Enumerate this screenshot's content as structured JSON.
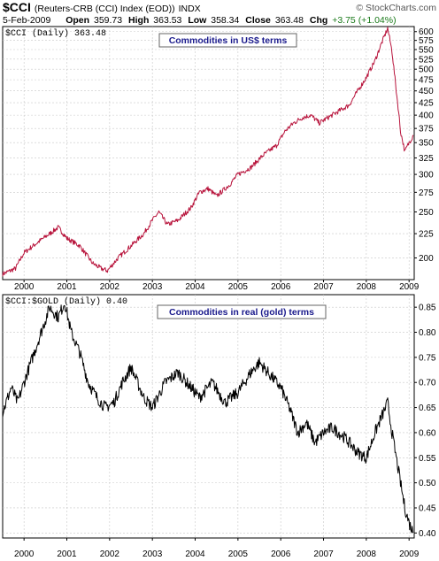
{
  "header": {
    "symbol": "$CCI",
    "description": "(Reuters-CRB (CCI) Index (EOD))",
    "exchange": "INDX",
    "copyright": "© StockCharts.com",
    "date": "5-Feb-2009",
    "open_label": "Open",
    "open_value": "359.73",
    "high_label": "High",
    "high_value": "363.53",
    "low_label": "Low",
    "low_value": "358.34",
    "close_label": "Close",
    "close_value": "363.48",
    "chg_label": "Chg",
    "chg_value": "+3.75 (+1.04%)"
  },
  "colors": {
    "price_line": "#b8143c",
    "ratio_line": "#000000",
    "annotation_text": "#1a1a8c",
    "grid": "#c8c8c8",
    "change_positive": "#1a7a1a"
  },
  "chart_data": [
    {
      "type": "line",
      "panel_label": "$CCI (Daily) 363.48",
      "annotation": "Commodities in US$ terms",
      "y_axis_side": "right",
      "y_scale": "log",
      "ylim": [
        180,
        615
      ],
      "yticks": [
        200,
        225,
        250,
        275,
        300,
        325,
        350,
        375,
        400,
        425,
        450,
        475,
        500,
        525,
        550,
        575,
        600
      ],
      "xlim": [
        1999.5,
        2009.12
      ],
      "xticks": [
        "2000",
        "2001",
        "2002",
        "2003",
        "2004",
        "2005",
        "2006",
        "2007",
        "2008",
        "2009"
      ],
      "grid": true,
      "series": [
        {
          "x": [
            1999.5,
            1999.8,
            2000.0,
            2000.3,
            2000.6,
            2000.8,
            2001.0,
            2001.3,
            2001.6,
            2001.8,
            2001.95,
            2002.2,
            2002.5,
            2002.8,
            2003.0,
            2003.15,
            2003.35,
            2003.6,
            2003.9,
            2004.1,
            2004.3,
            2004.5,
            2004.8,
            2005.0,
            2005.3,
            2005.6,
            2005.9,
            2006.1,
            2006.3,
            2006.5,
            2006.7,
            2006.9,
            2007.1,
            2007.4,
            2007.6,
            2007.8,
            2008.0,
            2008.2,
            2008.4,
            2008.5,
            2008.6,
            2008.7,
            2008.8,
            2008.9,
            2009.0,
            2009.1
          ],
          "values": [
            185,
            190,
            205,
            215,
            225,
            232,
            220,
            212,
            195,
            190,
            188,
            200,
            212,
            225,
            240,
            250,
            235,
            240,
            255,
            275,
            280,
            270,
            285,
            300,
            310,
            330,
            345,
            370,
            385,
            395,
            400,
            385,
            395,
            410,
            420,
            450,
            480,
            520,
            580,
            610,
            545,
            450,
            370,
            335,
            350,
            363
          ]
        }
      ]
    },
    {
      "type": "line",
      "panel_label": "$CCI:$GOLD (Daily) 0.40",
      "annotation": "Commodities in real (gold) terms",
      "y_axis_side": "right",
      "ylim": [
        0.39,
        0.875
      ],
      "yticks": [
        0.4,
        0.45,
        0.5,
        0.55,
        0.6,
        0.65,
        0.7,
        0.75,
        0.8,
        0.85
      ],
      "xlim": [
        1999.5,
        2009.12
      ],
      "xticks": [
        "2000",
        "2001",
        "2002",
        "2003",
        "2004",
        "2005",
        "2006",
        "2007",
        "2008",
        "2009"
      ],
      "grid": true,
      "series": [
        {
          "x": [
            1999.5,
            1999.7,
            1999.85,
            2000.0,
            2000.2,
            2000.4,
            2000.6,
            2000.8,
            2000.95,
            2001.1,
            2001.3,
            2001.5,
            2001.7,
            2001.9,
            2002.1,
            2002.3,
            2002.5,
            2002.8,
            2003.0,
            2003.3,
            2003.6,
            2003.9,
            2004.1,
            2004.4,
            2004.7,
            2005.0,
            2005.3,
            2005.5,
            2005.7,
            2006.0,
            2006.2,
            2006.4,
            2006.6,
            2006.8,
            2007.0,
            2007.2,
            2007.5,
            2007.8,
            2008.0,
            2008.2,
            2008.4,
            2008.5,
            2008.6,
            2008.7,
            2008.8,
            2008.9,
            2009.0,
            2009.1
          ],
          "values": [
            0.64,
            0.69,
            0.66,
            0.7,
            0.75,
            0.8,
            0.85,
            0.83,
            0.86,
            0.8,
            0.76,
            0.7,
            0.67,
            0.65,
            0.66,
            0.7,
            0.73,
            0.67,
            0.65,
            0.7,
            0.72,
            0.69,
            0.67,
            0.7,
            0.66,
            0.68,
            0.72,
            0.74,
            0.72,
            0.69,
            0.65,
            0.6,
            0.62,
            0.58,
            0.6,
            0.61,
            0.59,
            0.56,
            0.55,
            0.6,
            0.64,
            0.66,
            0.6,
            0.55,
            0.5,
            0.45,
            0.42,
            0.4
          ]
        }
      ]
    }
  ]
}
